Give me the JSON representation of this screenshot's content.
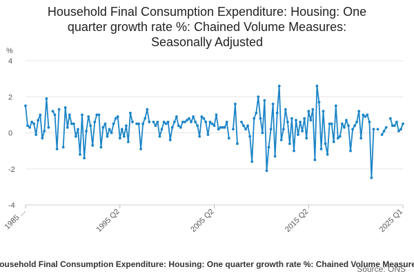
{
  "chart_data": {
    "type": "line",
    "title_lines": [
      "Household Final Consumption Expenditure: Housing: One",
      "quarter growth rate %: Chained Volume Measures:",
      "Seasonally Adjusted"
    ],
    "ylabel": "%",
    "ylim": [
      -4,
      4
    ],
    "yticks": [
      "4",
      "2",
      "0",
      "-2",
      "-4"
    ],
    "xticks": [
      "1985 ...",
      "1995 Q2",
      "2005 Q2",
      "2015 Q2",
      "2025 Q1"
    ],
    "series": [
      {
        "name": "Household Final Consumption Expenditure: Housing: One quarter growth rate %: Chained Volume Measures",
        "color": "#1a84c7",
        "values": [
          1.5,
          0.4,
          0.3,
          0.6,
          0.5,
          -0.1,
          0.7,
          1.0,
          -0.3,
          0.1,
          1.9,
          0.3,
          null,
          1.2,
          1.0,
          -0.9,
          1.3,
          null,
          -0.8,
          1.4,
          0.3,
          1.0,
          0.5,
          0.5,
          -0.2,
          0.2,
          -1.2,
          1.0,
          -1.4,
          0.1,
          0.9,
          0.4,
          -0.7,
          0.6,
          1.0,
          1.0,
          -0.8,
          0.3,
          0.5,
          -0.2,
          0.2,
          0.0,
          0.5,
          0.8,
          0.9,
          -0.3,
          0.2,
          -0.2,
          0.4,
          -0.5,
          1.1,
          0.6,
          null,
          0.5,
          0.5,
          -0.9,
          0.5,
          0.8,
          1.3,
          0.6,
          null,
          0.6,
          0.4,
          0.6,
          -0.2,
          0.2,
          0.6,
          0.5,
          0.6,
          -0.4,
          0.3,
          0.6,
          0.9,
          0.4,
          0.3,
          0.6,
          0.6,
          0.7,
          0.8,
          0.6,
          0.9,
          0.6,
          0.4,
          -0.2,
          0.9,
          0.8,
          0.6,
          -0.1,
          0.6,
          0.5,
          0.4,
          1.0,
          0.2,
          0.3,
          0.3,
          0.3,
          0.6,
          -0.3,
          null,
          0.2,
          1.6,
          -0.6,
          null,
          0.6,
          0.4,
          0.2,
          0.4,
          -0.2,
          -1.6,
          0.8,
          1.1,
          2.0,
          0.8,
          0.0,
          1.8,
          -2.1,
          -0.8,
          0.2,
          1.6,
          -1.3,
          1.1,
          2.6,
          -0.4,
          0.2,
          1.3,
          0.6,
          -0.6,
          0.8,
          -1.0,
          0.7,
          -0.1,
          0.6,
          0.1,
          0.8,
          -0.3,
          1.2,
          0.7,
          1.3,
          -1.5,
          2.6,
          1.7,
          -0.9,
          1.2,
          -0.6,
          -1.2,
          0.5,
          0.5,
          -0.5,
          1.5,
          -0.3,
          -0.2,
          0.5,
          0.3,
          0.7,
          0.4,
          -1.0,
          0.2,
          0.4,
          0.6,
          1.2,
          -0.3,
          1.0,
          0.9,
          1.0,
          0.6,
          -2.5,
          0.2,
          null,
          0.2,
          null,
          -0.1,
          0.1,
          0.3,
          null,
          0.8,
          0.4,
          0.4,
          0.6,
          0.1,
          0.2,
          0.5
        ]
      }
    ],
    "legend_label": "Household Final Consumption Expenditure: Housing: One quarter growth rate %: Chained Volume Measures",
    "source_label": "Source: ONS"
  }
}
